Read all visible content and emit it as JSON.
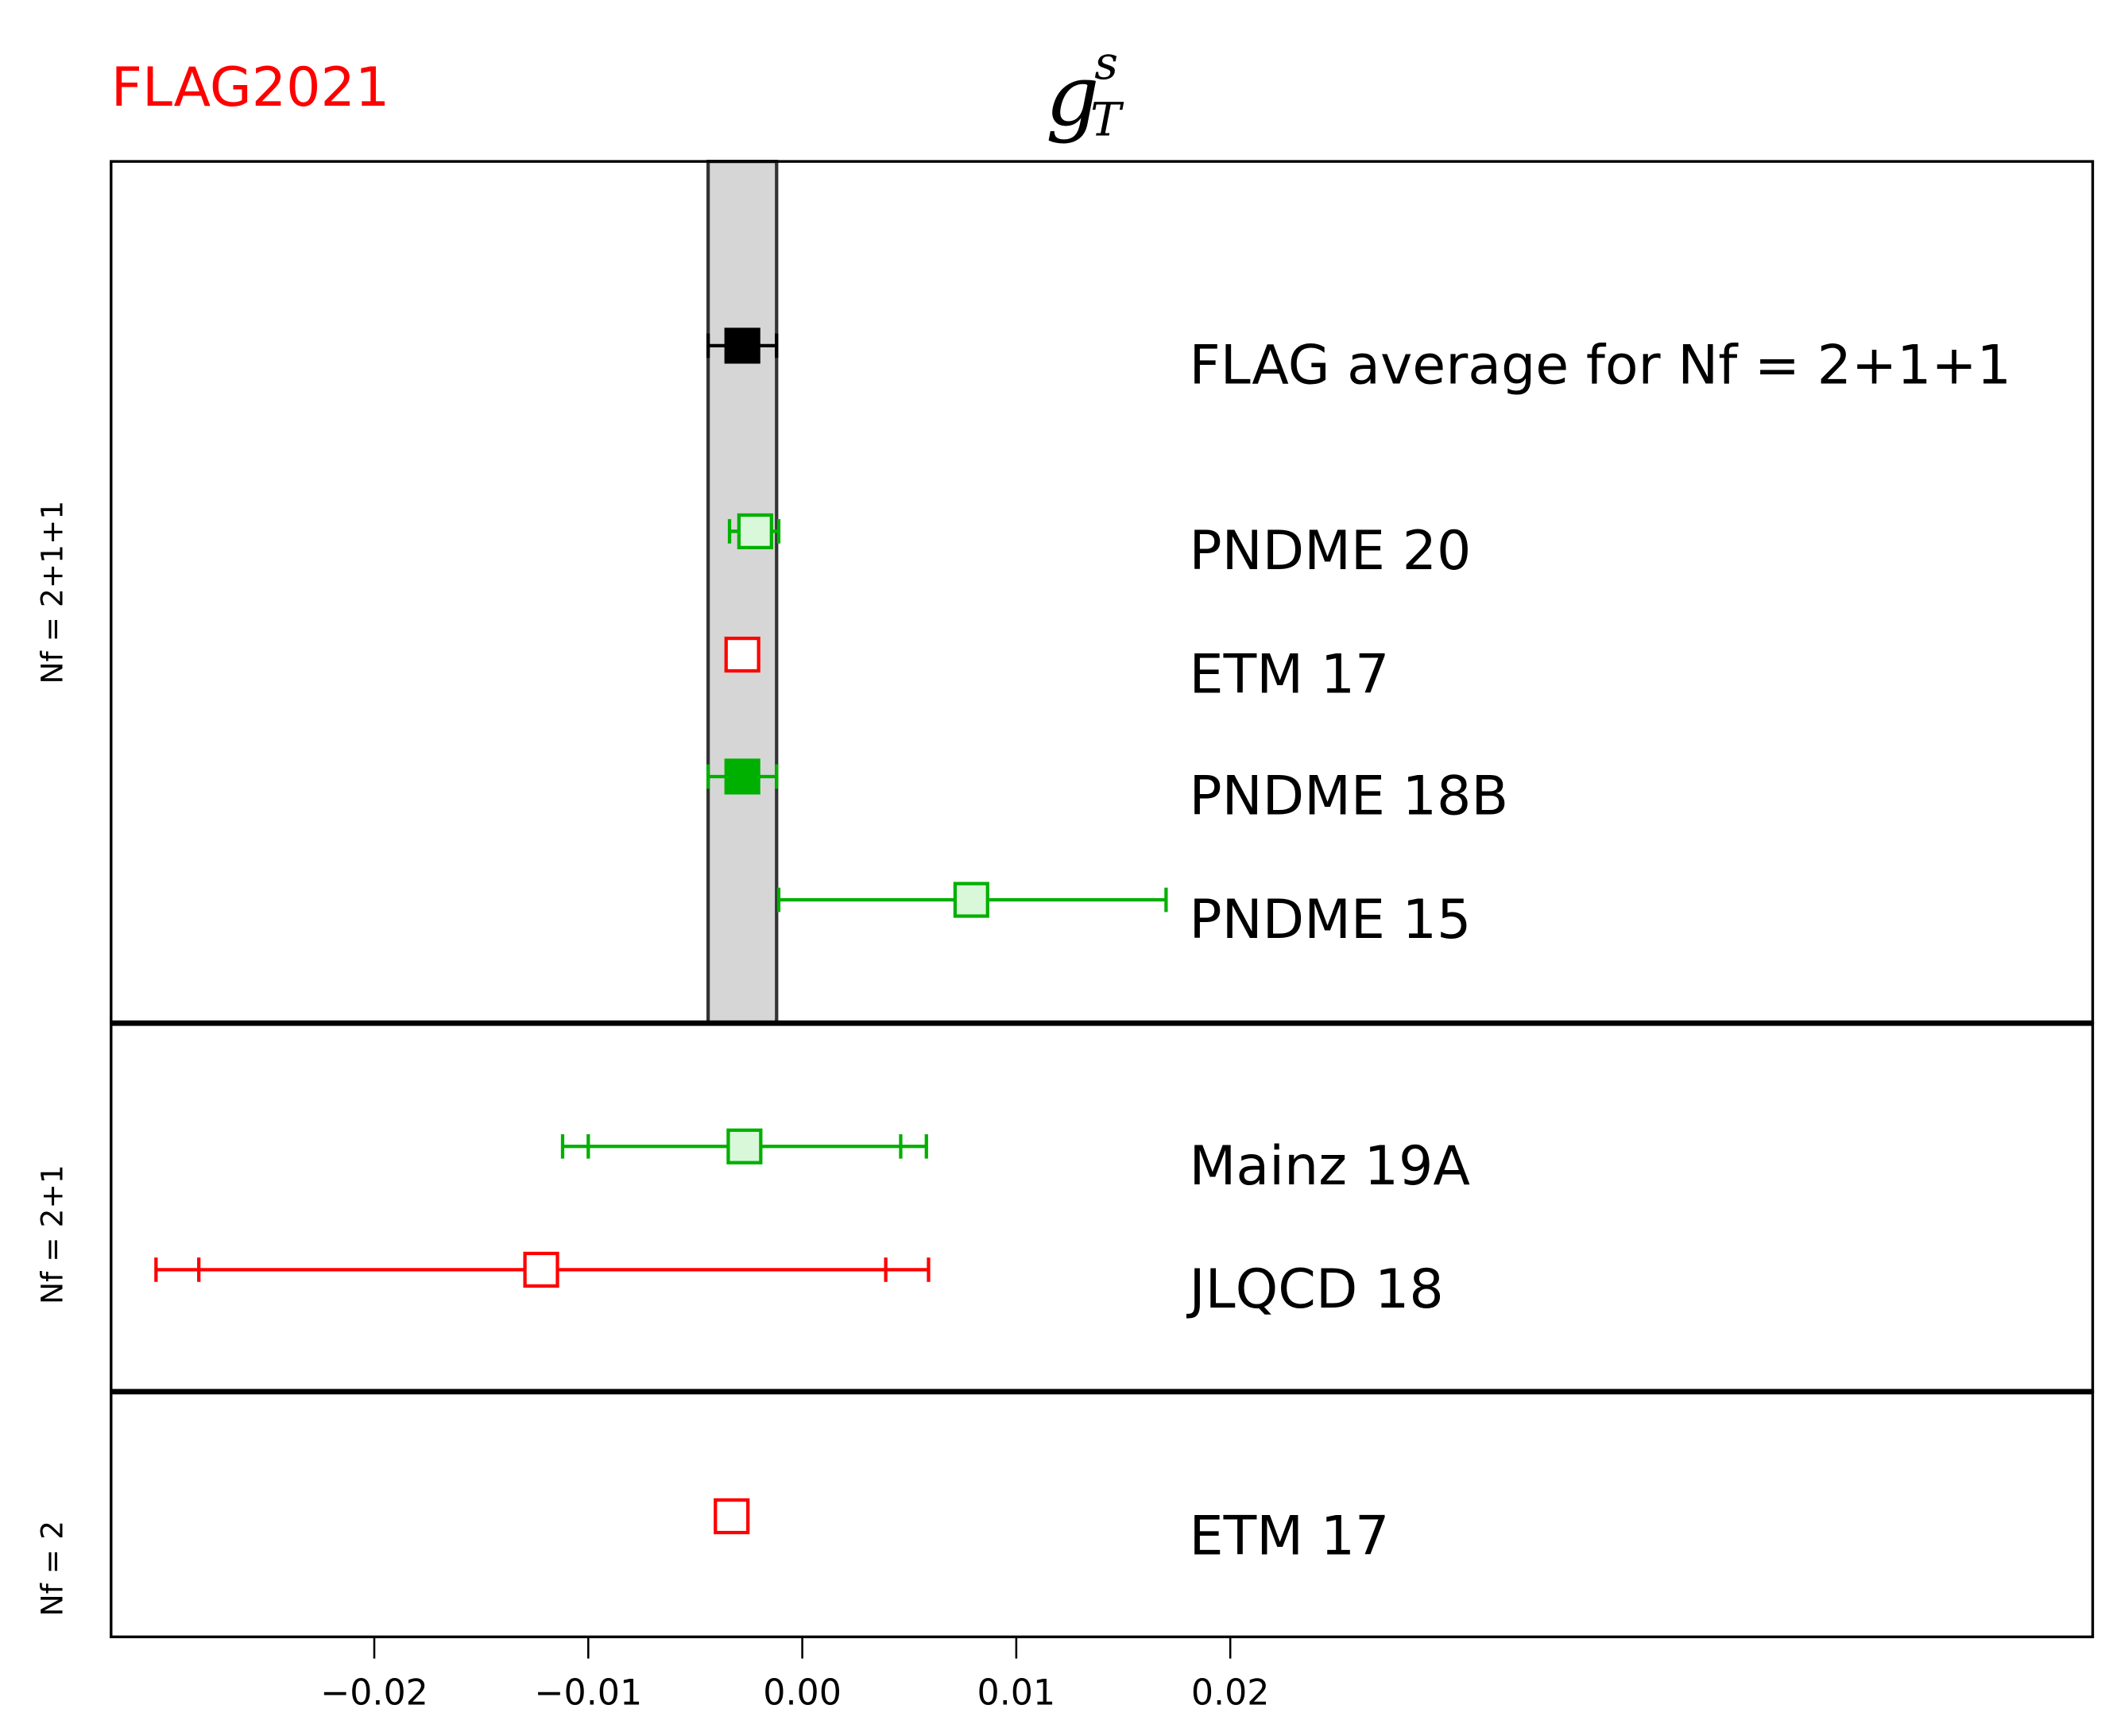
{
  "chart_data": {
    "type": "scatter",
    "title": "g_T^s",
    "logo": "FLAG2021",
    "xlim": [
      -0.0323,
      0.0603
    ],
    "xticks": [
      -0.02,
      -0.01,
      0.0,
      0.01,
      0.02
    ],
    "xtick_labels": [
      "−0.02",
      "−0.01",
      "0.00",
      "0.01",
      "0.02"
    ],
    "flag_band": [
      -0.0044,
      -0.0012
    ],
    "groups": [
      {
        "label": "Nₓ=2+1+1",
        "label_text": "Nf = 2+1+1",
        "rows": 5
      },
      {
        "label_text": "Nf = 2+1",
        "rows": 2
      },
      {
        "label_text": "Nf = 2",
        "rows": 1
      }
    ],
    "points": [
      {
        "name": "FLAG average for Nf = 2+1+1",
        "group": 0,
        "value": -0.0028,
        "err_lo": -0.0044,
        "err_hi": -0.0012,
        "color": "#000000",
        "fill": "#000000"
      },
      {
        "name": "PNDME 20",
        "group": 0,
        "value": -0.0022,
        "err_lo": -0.0034,
        "err_hi": -0.0011,
        "color": "#00b000",
        "fill": "#d9f8d9"
      },
      {
        "name": "ETM 17",
        "group": 0,
        "value": -0.0028,
        "err_lo": -0.0034,
        "err_hi": -0.0022,
        "color": "#ff0000",
        "fill": "#ffffff"
      },
      {
        "name": "PNDME 18B",
        "group": 0,
        "value": -0.0028,
        "err_lo": -0.0044,
        "err_hi": -0.0012,
        "color": "#00b000",
        "fill": "#00b000"
      },
      {
        "name": "PNDME 15",
        "group": 0,
        "value": 0.0079,
        "err_lo": -0.0011,
        "err_hi": 0.017,
        "color": "#00b000",
        "fill": "#d9f8d9"
      },
      {
        "name": "Mainz 19A",
        "group": 1,
        "value": -0.0027,
        "err_lo": -0.01,
        "err_hi": 0.0046,
        "err_lo2": -0.0112,
        "err_hi2": 0.0058,
        "color": "#00b000",
        "fill": "#d9f8d9"
      },
      {
        "name": "JLQCD 18",
        "group": 1,
        "value": -0.0122,
        "err_lo": -0.0282,
        "err_hi": 0.0039,
        "err_lo2": -0.0302,
        "err_hi2": 0.0059,
        "color": "#ff0000",
        "fill": "#ffffff"
      },
      {
        "name": "ETM 17",
        "group": 2,
        "value": -0.0033,
        "err_lo": -0.0038,
        "err_hi": -0.0028,
        "color": "#ff0000",
        "fill": "#ffffff"
      }
    ]
  }
}
